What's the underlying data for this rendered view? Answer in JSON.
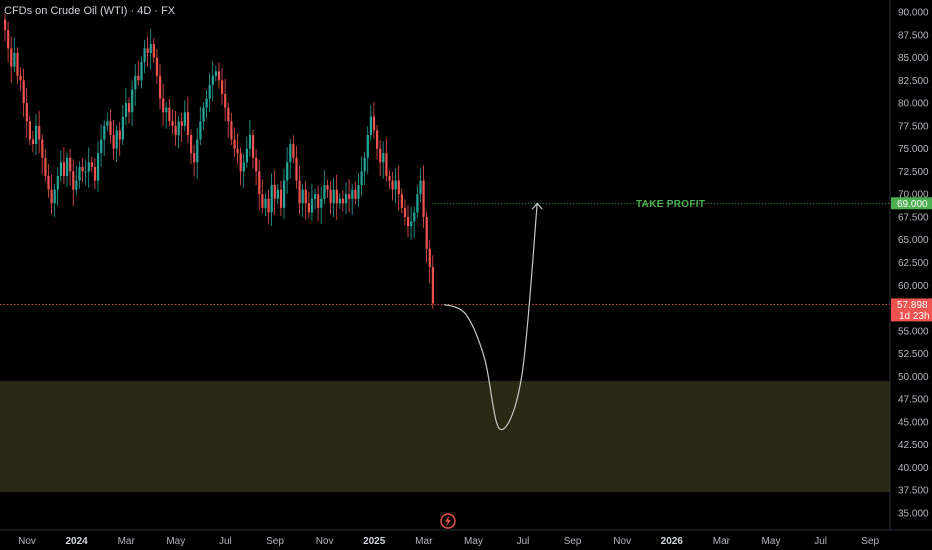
{
  "header": {
    "title": "CFDs on Crude Oil (WTI) · 4D · FX"
  },
  "colors": {
    "up": "#26a69a",
    "down": "#ef5350",
    "background": "#000000",
    "zone": "#2a2913",
    "take_profit": "#4caf50",
    "price_line": "#ef5350",
    "projection": "#c8c8c8"
  },
  "chart_data": {
    "type": "candlestick",
    "ylim": [
      33.5,
      91.5
    ],
    "y_ticks": [
      "90.000",
      "87.500",
      "85.000",
      "82.500",
      "80.000",
      "77.500",
      "75.000",
      "72.500",
      "70.000",
      "67.500",
      "65.000",
      "62.500",
      "60.000",
      "55.000",
      "52.500",
      "50.000",
      "47.500",
      "45.000",
      "42.500",
      "40.000",
      "37.500",
      "35.000"
    ],
    "x_ticks": [
      {
        "label": "Nov",
        "bold": false
      },
      {
        "label": "2024",
        "bold": true
      },
      {
        "label": "Mar",
        "bold": false
      },
      {
        "label": "May",
        "bold": false
      },
      {
        "label": "Jul",
        "bold": false
      },
      {
        "label": "Sep",
        "bold": false
      },
      {
        "label": "Nov",
        "bold": false
      },
      {
        "label": "2025",
        "bold": true
      },
      {
        "label": "Mar",
        "bold": false
      },
      {
        "label": "May",
        "bold": false
      },
      {
        "label": "Jul",
        "bold": false
      },
      {
        "label": "Sep",
        "bold": false
      },
      {
        "label": "Nov",
        "bold": false
      },
      {
        "label": "2026",
        "bold": true
      },
      {
        "label": "Mar",
        "bold": false
      },
      {
        "label": "May",
        "bold": false
      },
      {
        "label": "Jul",
        "bold": false
      },
      {
        "label": "Sep",
        "bold": false
      }
    ],
    "closes": [
      88.0,
      86.0,
      84.0,
      85.5,
      83.0,
      82.5,
      80.0,
      78.0,
      76.0,
      75.5,
      77.5,
      76.0,
      74.0,
      72.0,
      70.5,
      69.0,
      70.5,
      72.0,
      73.5,
      72.0,
      74.0,
      72.5,
      70.5,
      71.5,
      73.0,
      72.5,
      72.5,
      73.5,
      73.0,
      71.5,
      74.5,
      76.0,
      77.5,
      78.0,
      76.5,
      75.0,
      77.0,
      76.0,
      78.5,
      80.0,
      79.0,
      81.5,
      83.0,
      82.5,
      84.5,
      86.0,
      85.5,
      86.5,
      85.0,
      83.0,
      80.5,
      79.0,
      79.5,
      78.0,
      77.5,
      76.5,
      78.0,
      77.5,
      79.0,
      76.5,
      74.5,
      73.5,
      76.0,
      78.0,
      79.5,
      80.5,
      82.0,
      83.0,
      83.5,
      82.5,
      81.0,
      79.5,
      78.0,
      76.0,
      75.0,
      74.5,
      72.5,
      73.5,
      75.0,
      76.5,
      74.0,
      72.5,
      70.0,
      68.5,
      69.5,
      68.0,
      71.0,
      69.5,
      70.5,
      68.5,
      71.5,
      73.5,
      75.5,
      74.0,
      71.5,
      69.0,
      70.5,
      69.0,
      68.0,
      69.5,
      70.0,
      68.5,
      69.5,
      71.0,
      70.5,
      69.0,
      70.5,
      69.0,
      69.5,
      69.0,
      70.0,
      69.5,
      70.5,
      69.5,
      71.0,
      72.5,
      74.0,
      76.5,
      78.5,
      77.0,
      75.0,
      73.5,
      74.5,
      72.0,
      71.5,
      70.5,
      71.5,
      70.0,
      68.5,
      67.5,
      66.5,
      67.0,
      68.0,
      70.0,
      71.5,
      67.5,
      64.0,
      62.0,
      58.0
    ],
    "current_price": 57.898,
    "current_price_label": "57.898",
    "countdown": "1d 23h",
    "take_profit": {
      "label": "TAKE PROFIT",
      "price": 69.0,
      "price_label": "69.000"
    },
    "demand_zone": {
      "top": 49.5,
      "bottom": 37.3
    },
    "projection_path": [
      {
        "bar": 142,
        "price": 57.9
      },
      {
        "bar": 149,
        "price": 56.8
      },
      {
        "bar": 155,
        "price": 52.0
      },
      {
        "bar": 160,
        "price": 44.2
      },
      {
        "bar": 167,
        "price": 50.0
      },
      {
        "bar": 172,
        "price": 69.0
      }
    ]
  }
}
